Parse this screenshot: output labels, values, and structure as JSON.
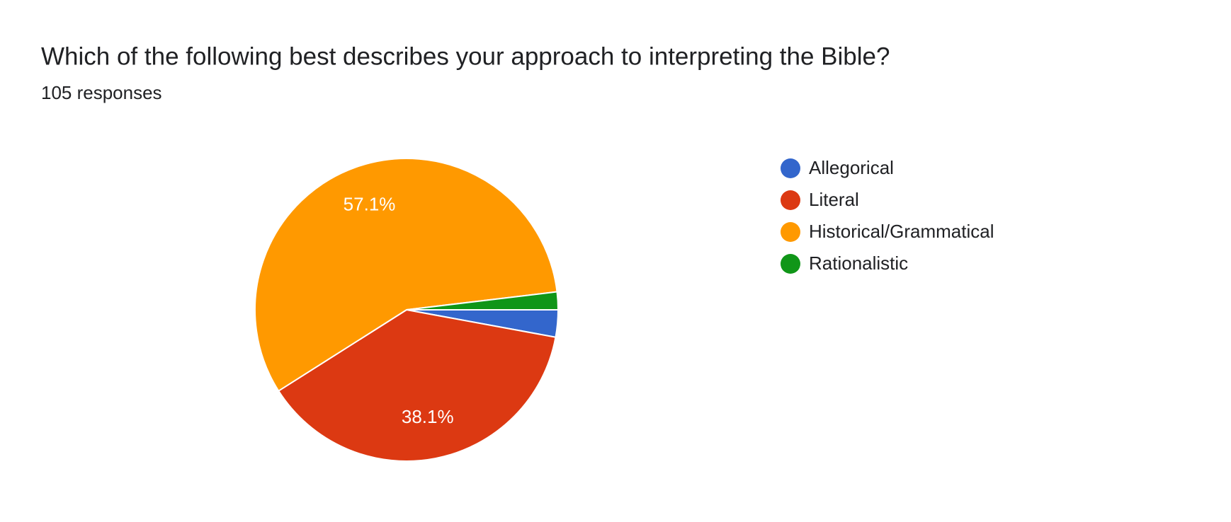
{
  "chart_data": {
    "type": "pie",
    "title": "Which of the following best describes your approach to interpreting the Bible?",
    "subtitle": "105 responses",
    "categories": [
      "Allegorical",
      "Literal",
      "Historical/Grammatical",
      "Rationalistic"
    ],
    "values": [
      2.9,
      38.1,
      57.1,
      1.9
    ],
    "value_labels": [
      null,
      "38.1%",
      "57.1%",
      null
    ],
    "colors": [
      "#3366cc",
      "#dc3912",
      "#ff9900",
      "#109618"
    ],
    "legend": "right"
  }
}
